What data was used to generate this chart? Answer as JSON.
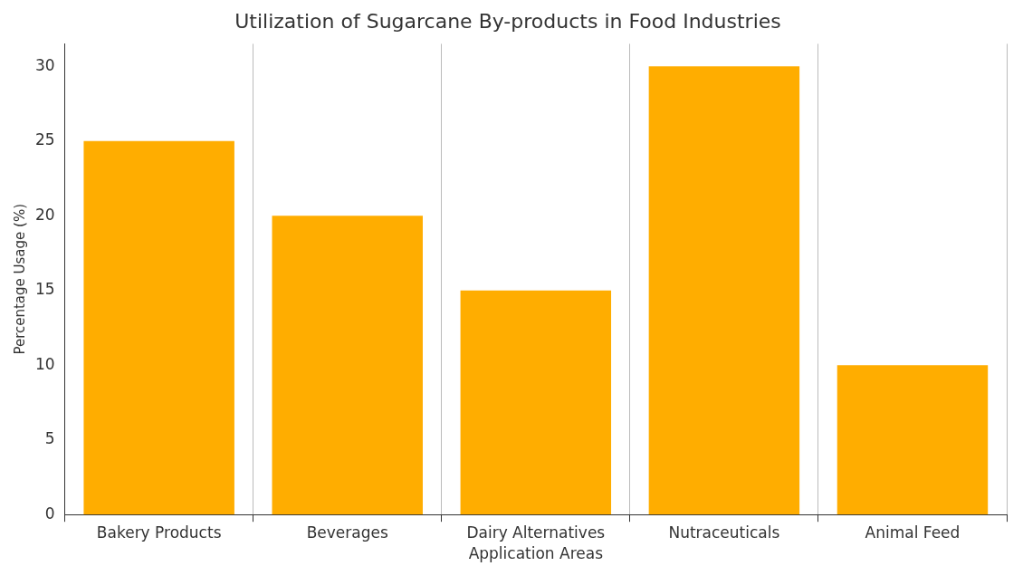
{
  "chart_data": {
    "type": "bar",
    "title": "Utilization of Sugarcane By-products in Food Industries",
    "xlabel": "Application Areas",
    "ylabel": "Percentage Usage (%)",
    "categories": [
      "Bakery Products",
      "Beverages",
      "Dairy Alternatives",
      "Nutraceuticals",
      "Animal Feed"
    ],
    "values": [
      25,
      20,
      15,
      30,
      10
    ],
    "color": "#ffad00",
    "ylim": [
      0,
      31.5
    ],
    "yticks": [
      0,
      5,
      10,
      15,
      20,
      25,
      30
    ],
    "grid": "x"
  }
}
